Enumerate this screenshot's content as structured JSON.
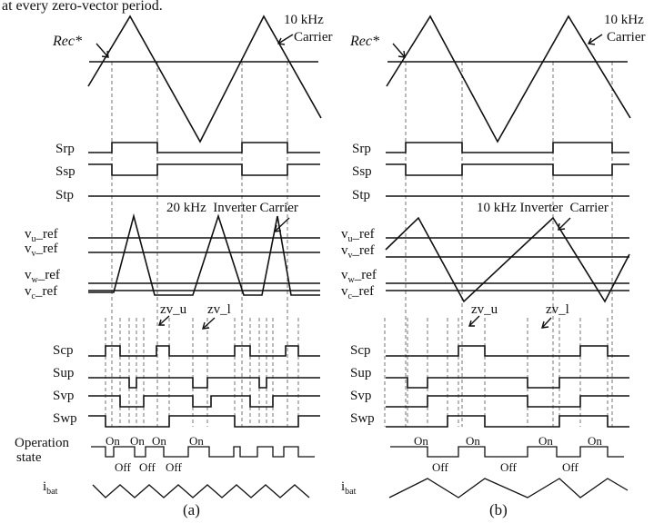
{
  "caption_top": "at every zero-vector period.",
  "panels": [
    {
      "label": "(a)",
      "rec_label": "Rec*",
      "carrier_freq": "10 kHz",
      "carrier_word": "Carrier",
      "rectifier_signals": [
        "Srp",
        "Ssp",
        "Stp"
      ],
      "inverter_carrier_label": "20 kHz  Inverter Carrier",
      "refs": [
        {
          "base": "v",
          "sub": "u",
          "suffix": "_ref"
        },
        {
          "base": "v",
          "sub": "v",
          "suffix": "_ref"
        },
        {
          "base": "v",
          "sub": "w",
          "suffix": "_ref"
        },
        {
          "base": "v",
          "sub": "c",
          "suffix": "_ref"
        }
      ],
      "zv_u": "zv_u",
      "zv_l": "zv_l",
      "inverter_signals": [
        "Scp",
        "Sup",
        "Svp",
        "Swp"
      ],
      "operation_label": [
        "Operation",
        "state"
      ],
      "on_labels": [
        "On",
        "On",
        "On",
        "On"
      ],
      "off_labels": [
        "Off",
        "Off",
        "Off"
      ],
      "ibat": {
        "base": "i",
        "sub": "bat"
      }
    },
    {
      "label": "(b)",
      "rec_label": "Rec*",
      "carrier_freq": "10 kHz",
      "carrier_word": "Carrier",
      "rectifier_signals": [
        "Srp",
        "Ssp",
        "Stp"
      ],
      "inverter_carrier_label": "10 kHz Inverter  Carrier",
      "refs": [
        {
          "base": "v",
          "sub": "u",
          "suffix": "_ref"
        },
        {
          "base": "v",
          "sub": "v",
          "suffix": "_ref"
        },
        {
          "base": "v",
          "sub": "w",
          "suffix": "_ref"
        },
        {
          "base": "v",
          "sub": "c",
          "suffix": "_ref"
        }
      ],
      "zv_u": "zv_u",
      "zv_l": "zv_l",
      "inverter_signals": [
        "Scp",
        "Sup",
        "Svp",
        "Swp"
      ],
      "on_labels": [
        "On",
        "On",
        "On",
        "On"
      ],
      "off_labels": [
        "Off",
        "Off",
        "Off"
      ],
      "ibat": {
        "base": "i",
        "sub": "bat"
      }
    }
  ]
}
